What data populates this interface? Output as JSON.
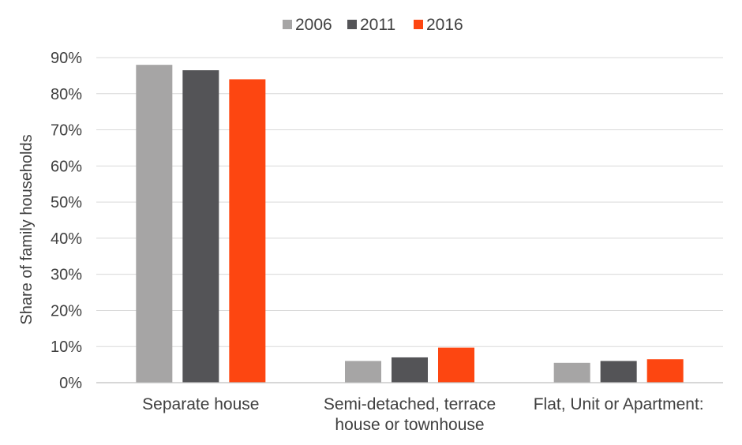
{
  "chart_data": {
    "type": "bar",
    "categories": [
      [
        "Separate house"
      ],
      [
        "Semi-detached, terrace",
        "house or townhouse"
      ],
      [
        "Flat, Unit or Apartment:"
      ]
    ],
    "series": [
      {
        "name": "2006",
        "color": "#a6a5a5",
        "values": [
          88,
          6,
          5.5
        ]
      },
      {
        "name": "2011",
        "color": "#545457",
        "values": [
          86.5,
          7,
          6
        ]
      },
      {
        "name": "2016",
        "color": "#fd4611",
        "values": [
          84,
          9.7,
          6.5
        ]
      }
    ],
    "ylabel": "Share of family households",
    "ylim": [
      0,
      90
    ],
    "yticks": [
      0,
      10,
      20,
      30,
      40,
      50,
      60,
      70,
      80,
      90
    ],
    "ytick_suffix": "%",
    "grid": true,
    "legend_position": "top-center"
  }
}
